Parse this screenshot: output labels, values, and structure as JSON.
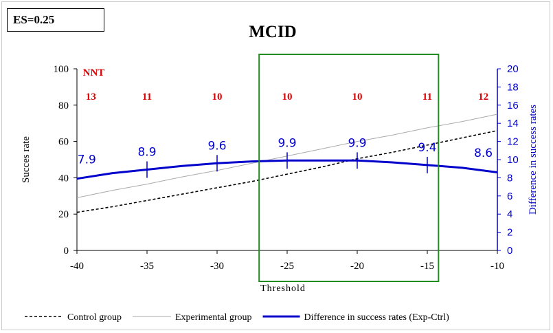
{
  "es_label": "ES=0.25",
  "chart_data": {
    "type": "line",
    "title": "MCID",
    "xlabel": "Threshold",
    "ylabel": "Succes rate",
    "y2label": "Difference in success rates",
    "xlim": [
      -40,
      -10
    ],
    "ylim": [
      0,
      100
    ],
    "y2lim": [
      0,
      20
    ],
    "xticks": [
      -40,
      -35,
      -30,
      -25,
      -20,
      -15,
      -10
    ],
    "yticks": [
      0,
      20,
      40,
      60,
      80,
      100
    ],
    "y2ticks": [
      0,
      2,
      4,
      6,
      8,
      10,
      12,
      14,
      16,
      18,
      20
    ],
    "nnt_label": "NNT",
    "nnt_values": [
      {
        "x": -39,
        "label": "13"
      },
      {
        "x": -35,
        "label": "11"
      },
      {
        "x": -30,
        "label": "10"
      },
      {
        "x": -25,
        "label": "10"
      },
      {
        "x": -20,
        "label": "10"
      },
      {
        "x": -15,
        "label": "11"
      },
      {
        "x": -11,
        "label": "12"
      }
    ],
    "series": [
      {
        "name": "Control group",
        "axis": "left",
        "color": "#000000",
        "style": "dashed",
        "x": [
          -40,
          -37.5,
          -35,
          -32.5,
          -30,
          -27.5,
          -25,
          -22.5,
          -20,
          -17.5,
          -15,
          -12.5,
          -10
        ],
        "y": [
          21,
          24,
          27.5,
          31,
          34.5,
          38,
          42,
          46,
          50.5,
          54,
          58,
          62,
          66
        ]
      },
      {
        "name": "Experimental group",
        "axis": "left",
        "color": "#aaaaaa",
        "style": "solid",
        "x": [
          -40,
          -37.5,
          -35,
          -32.5,
          -30,
          -27.5,
          -25,
          -22.5,
          -20,
          -17.5,
          -15,
          -12.5,
          -10
        ],
        "y": [
          29,
          33,
          36.5,
          40.5,
          44,
          48,
          52,
          56,
          60,
          63.5,
          67.5,
          71,
          75
        ]
      },
      {
        "name": "Difference in success rates (Exp-Ctrl)",
        "axis": "right",
        "color": "#0000cc",
        "style": "solid",
        "x": [
          -40,
          -37.5,
          -35,
          -32.5,
          -30,
          -27.5,
          -25,
          -22.5,
          -20,
          -17.5,
          -15,
          -12.5,
          -10
        ],
        "y": [
          7.9,
          8.5,
          8.9,
          9.3,
          9.6,
          9.8,
          9.9,
          9.9,
          9.9,
          9.7,
          9.4,
          9.1,
          8.6
        ]
      }
    ],
    "diff_markers": [
      {
        "x": -39.3,
        "label": "7.9",
        "tick": false
      },
      {
        "x": -35,
        "label": "8.9",
        "tick": true
      },
      {
        "x": -30,
        "label": "9.6",
        "tick": true
      },
      {
        "x": -25,
        "label": "9.9",
        "tick": true
      },
      {
        "x": -20,
        "label": "9.9",
        "tick": true
      },
      {
        "x": -15,
        "label": "9.4",
        "tick": true
      },
      {
        "x": -11,
        "label": "8.6",
        "tick": false
      }
    ],
    "highlight_box": {
      "x_from": -27,
      "x_to": -14.2,
      "color": "#228b22"
    },
    "legend_position": "bottom"
  }
}
